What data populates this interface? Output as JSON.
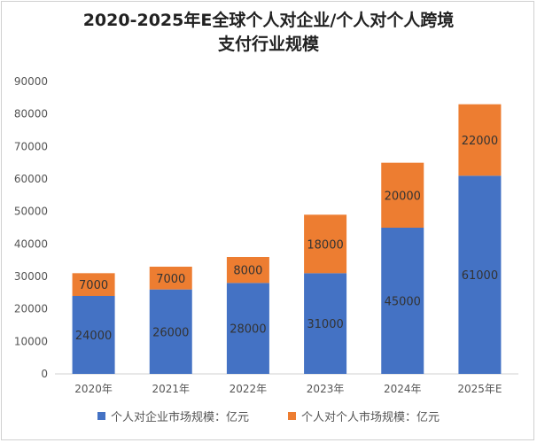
{
  "chart_data": {
    "type": "bar",
    "stacked": true,
    "title_line1": "2020-2025年E全球个人对企业/个人对个人跨境",
    "title_line2": "支付行业规模",
    "categories": [
      "2020年",
      "2021年",
      "2022年",
      "2023年",
      "2024年",
      "2025年E"
    ],
    "series": [
      {
        "name": "个人对企业市场规模：亿元",
        "color": "#4472C4",
        "values": [
          24000,
          26000,
          28000,
          31000,
          45000,
          61000
        ]
      },
      {
        "name": "个人对个人市场规模：亿元",
        "color": "#ED7D31",
        "values": [
          7000,
          7000,
          8000,
          18000,
          20000,
          22000
        ]
      }
    ],
    "ylim": [
      0,
      90000
    ],
    "yticks": [
      0,
      10000,
      20000,
      30000,
      40000,
      50000,
      60000,
      70000,
      80000,
      90000
    ],
    "grid": false,
    "legend_position": "bottom"
  }
}
